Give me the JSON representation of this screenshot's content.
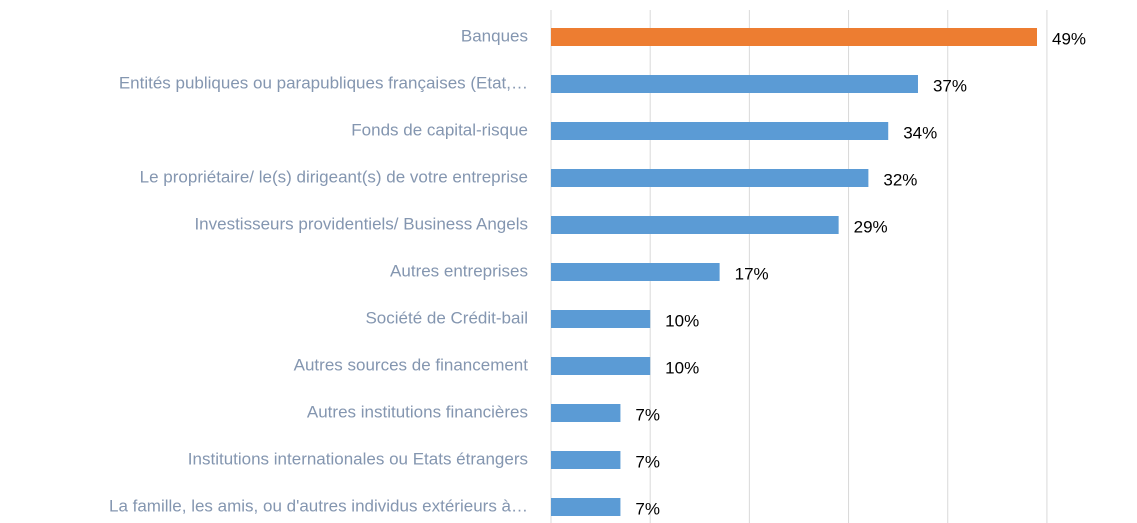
{
  "chart_data": {
    "type": "hbar",
    "categories": [
      "Banques",
      "Entités publiques ou parapubliques françaises (Etat,…",
      "Fonds de capital-risque",
      "Le propriétaire/ le(s) dirigeant(s) de votre entreprise",
      "Investisseurs providentiels/ Business Angels",
      "Autres entreprises",
      "Société de Crédit-bail",
      "Autres sources de financement",
      "Autres institutions financières",
      "Institutions internationales ou Etats étrangers",
      "La famille, les amis, ou d'autres individus extérieurs à…"
    ],
    "values": [
      49,
      37,
      34,
      32,
      29,
      17,
      10,
      10,
      7,
      7,
      7
    ],
    "value_labels": [
      "49%",
      "37%",
      "34%",
      "32%",
      "29%",
      "17%",
      "10%",
      "10%",
      "7%",
      "7%",
      "7%"
    ],
    "colors": [
      "#ed7d31",
      "#5b9bd5",
      "#5b9bd5",
      "#5b9bd5",
      "#5b9bd5",
      "#5b9bd5",
      "#5b9bd5",
      "#5b9bd5",
      "#5b9bd5",
      "#5b9bd5",
      "#5b9bd5"
    ],
    "xlim": [
      0,
      50
    ],
    "xticks": [
      0,
      10,
      20,
      30,
      40,
      50
    ],
    "grid": true
  }
}
